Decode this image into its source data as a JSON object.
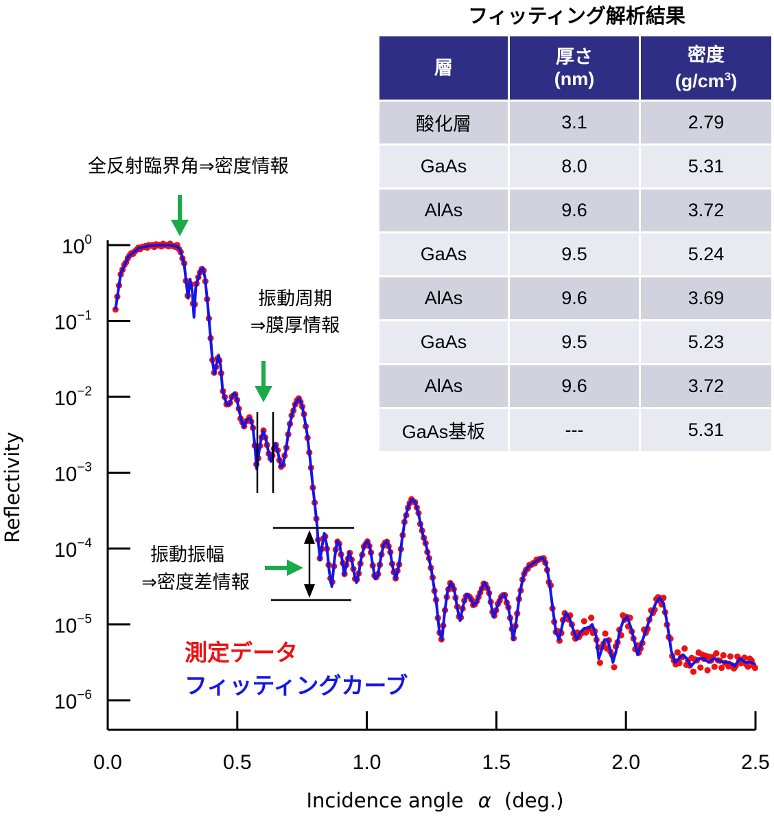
{
  "chart_data": {
    "type": "scatter",
    "xlabel": "Incidence angle",
    "xlabel_symbol": "α",
    "xlabel_unit": "(deg.)",
    "ylabel": "Reflectivity",
    "xlim": [
      0.0,
      2.5
    ],
    "ylim_log10": [
      -6.3,
      0.0
    ],
    "log_y": true,
    "x_ticks": [
      "0.0",
      "0.5",
      "1.0",
      "1.5",
      "2.0",
      "2.5"
    ],
    "x_tick_values": [
      0.0,
      0.5,
      1.0,
      1.5,
      2.0,
      2.5
    ],
    "y_ticks": [
      {
        "base": "10",
        "exp": "0",
        "value": 0
      },
      {
        "base": "10",
        "exp": "−1",
        "value": -1
      },
      {
        "base": "10",
        "exp": "−2",
        "value": -2
      },
      {
        "base": "10",
        "exp": "−3",
        "value": -3
      },
      {
        "base": "10",
        "exp": "−4",
        "value": -4
      },
      {
        "base": "10",
        "exp": "−5",
        "value": -5
      },
      {
        "base": "10",
        "exp": "−6",
        "value": -6
      }
    ],
    "series": [
      {
        "name": "測定データ",
        "color": "#ee1111",
        "style": "markers"
      },
      {
        "name": "フィッティングカーブ",
        "color": "#1515e6",
        "style": "line"
      }
    ],
    "curve_log10": [
      [
        0.03,
        -0.85
      ],
      [
        0.05,
        -0.38
      ],
      [
        0.08,
        -0.15
      ],
      [
        0.12,
        -0.04
      ],
      [
        0.16,
        -0.01
      ],
      [
        0.2,
        0.0
      ],
      [
        0.24,
        0.0
      ],
      [
        0.27,
        -0.02
      ],
      [
        0.28,
        -0.07
      ],
      [
        0.295,
        -0.25
      ],
      [
        0.305,
        -0.55
      ],
      [
        0.31,
        -0.7
      ],
      [
        0.318,
        -0.45
      ],
      [
        0.326,
        -0.6
      ],
      [
        0.333,
        -0.95
      ],
      [
        0.34,
        -0.55
      ],
      [
        0.348,
        -0.45
      ],
      [
        0.358,
        -0.33
      ],
      [
        0.367,
        -0.3
      ],
      [
        0.375,
        -0.42
      ],
      [
        0.385,
        -0.75
      ],
      [
        0.395,
        -1.15
      ],
      [
        0.405,
        -1.55
      ],
      [
        0.412,
        -1.7
      ],
      [
        0.418,
        -1.6
      ],
      [
        0.428,
        -1.45
      ],
      [
        0.436,
        -1.6
      ],
      [
        0.443,
        -1.9
      ],
      [
        0.45,
        -2.0
      ],
      [
        0.46,
        -2.1
      ],
      [
        0.47,
        -2.1
      ],
      [
        0.48,
        -2.0
      ],
      [
        0.488,
        -1.95
      ],
      [
        0.497,
        -2.0
      ],
      [
        0.505,
        -2.15
      ],
      [
        0.515,
        -2.3
      ],
      [
        0.525,
        -2.4
      ],
      [
        0.537,
        -2.3
      ],
      [
        0.55,
        -2.28
      ],
      [
        0.56,
        -2.4
      ],
      [
        0.568,
        -2.65
      ],
      [
        0.575,
        -2.95
      ],
      [
        0.583,
        -2.75
      ],
      [
        0.592,
        -2.55
      ],
      [
        0.6,
        -2.45
      ],
      [
        0.61,
        -2.55
      ],
      [
        0.62,
        -2.72
      ],
      [
        0.63,
        -2.85
      ],
      [
        0.638,
        -2.72
      ],
      [
        0.648,
        -2.62
      ],
      [
        0.658,
        -2.75
      ],
      [
        0.668,
        -2.92
      ],
      [
        0.676,
        -2.9
      ],
      [
        0.688,
        -2.7
      ],
      [
        0.698,
        -2.45
      ],
      [
        0.71,
        -2.25
      ],
      [
        0.723,
        -2.1
      ],
      [
        0.737,
        -2.02
      ],
      [
        0.748,
        -2.08
      ],
      [
        0.758,
        -2.25
      ],
      [
        0.77,
        -2.5
      ],
      [
        0.782,
        -2.85
      ],
      [
        0.792,
        -3.2
      ],
      [
        0.802,
        -3.5
      ],
      [
        0.808,
        -3.7
      ],
      [
        0.812,
        -3.9
      ],
      [
        0.82,
        -4.15
      ],
      [
        0.828,
        -3.95
      ],
      [
        0.836,
        -3.8
      ],
      [
        0.845,
        -3.95
      ],
      [
        0.855,
        -4.3
      ],
      [
        0.865,
        -4.5
      ],
      [
        0.875,
        -4.15
      ],
      [
        0.885,
        -3.9
      ],
      [
        0.895,
        -3.95
      ],
      [
        0.905,
        -4.15
      ],
      [
        0.913,
        -4.35
      ],
      [
        0.922,
        -4.2
      ],
      [
        0.932,
        -4.05
      ],
      [
        0.942,
        -4.15
      ],
      [
        0.952,
        -4.35
      ],
      [
        0.96,
        -4.45
      ],
      [
        0.97,
        -4.3
      ],
      [
        0.98,
        -4.1
      ],
      [
        0.992,
        -3.95
      ],
      [
        1.003,
        -3.9
      ],
      [
        1.013,
        -4.0
      ],
      [
        1.022,
        -4.2
      ],
      [
        1.032,
        -4.4
      ],
      [
        1.043,
        -4.35
      ],
      [
        1.055,
        -4.1
      ],
      [
        1.065,
        -3.95
      ],
      [
        1.077,
        -3.9
      ],
      [
        1.088,
        -4.0
      ],
      [
        1.1,
        -4.25
      ],
      [
        1.112,
        -4.4
      ],
      [
        1.125,
        -4.2
      ],
      [
        1.135,
        -3.9
      ],
      [
        1.148,
        -3.6
      ],
      [
        1.162,
        -3.42
      ],
      [
        1.175,
        -3.35
      ],
      [
        1.188,
        -3.4
      ],
      [
        1.2,
        -3.55
      ],
      [
        1.215,
        -3.8
      ],
      [
        1.232,
        -4.0
      ],
      [
        1.25,
        -4.3
      ],
      [
        1.268,
        -4.7
      ],
      [
        1.28,
        -5.1
      ],
      [
        1.29,
        -5.2
      ],
      [
        1.3,
        -4.85
      ],
      [
        1.312,
        -4.55
      ],
      [
        1.325,
        -4.45
      ],
      [
        1.338,
        -4.55
      ],
      [
        1.35,
        -4.8
      ],
      [
        1.36,
        -4.95
      ],
      [
        1.372,
        -4.75
      ],
      [
        1.385,
        -4.6
      ],
      [
        1.4,
        -4.65
      ],
      [
        1.412,
        -4.75
      ],
      [
        1.425,
        -4.7
      ],
      [
        1.44,
        -4.55
      ],
      [
        1.455,
        -4.45
      ],
      [
        1.47,
        -4.55
      ],
      [
        1.48,
        -4.75
      ],
      [
        1.49,
        -4.9
      ],
      [
        1.5,
        -4.8
      ],
      [
        1.515,
        -4.65
      ],
      [
        1.53,
        -4.6
      ],
      [
        1.545,
        -4.75
      ],
      [
        1.555,
        -4.95
      ],
      [
        1.565,
        -5.2
      ],
      [
        1.575,
        -5.0
      ],
      [
        1.59,
        -4.6
      ],
      [
        1.605,
        -4.35
      ],
      [
        1.62,
        -4.25
      ],
      [
        1.64,
        -4.2
      ],
      [
        1.66,
        -4.15
      ],
      [
        1.678,
        -4.12
      ],
      [
        1.692,
        -4.2
      ],
      [
        1.705,
        -4.45
      ],
      [
        1.718,
        -4.8
      ],
      [
        1.73,
        -5.1
      ],
      [
        1.742,
        -5.2
      ],
      [
        1.755,
        -5.0
      ],
      [
        1.768,
        -4.85
      ],
      [
        1.78,
        -4.9
      ],
      [
        1.795,
        -5.05
      ],
      [
        1.81,
        -5.2
      ],
      [
        1.825,
        -5.1
      ],
      [
        1.84,
        -5.05
      ],
      [
        1.855,
        -5.05
      ],
      [
        1.87,
        -5.0
      ],
      [
        1.885,
        -5.15
      ],
      [
        1.895,
        -5.45
      ],
      [
        1.905,
        -5.35
      ],
      [
        1.918,
        -5.2
      ],
      [
        1.93,
        -5.2
      ],
      [
        1.94,
        -5.35
      ],
      [
        1.95,
        -5.5
      ],
      [
        1.962,
        -5.35
      ],
      [
        1.975,
        -5.1
      ],
      [
        1.99,
        -4.95
      ],
      [
        2.005,
        -4.9
      ],
      [
        2.02,
        -5.05
      ],
      [
        2.035,
        -5.25
      ],
      [
        2.045,
        -5.4
      ],
      [
        2.055,
        -5.3
      ],
      [
        2.07,
        -5.15
      ],
      [
        2.085,
        -5.0
      ],
      [
        2.1,
        -4.85
      ],
      [
        2.115,
        -4.72
      ],
      [
        2.13,
        -4.65
      ],
      [
        2.145,
        -4.72
      ],
      [
        2.16,
        -5.0
      ],
      [
        2.175,
        -5.35
      ],
      [
        2.19,
        -5.5
      ],
      [
        2.205,
        -5.45
      ],
      [
        2.22,
        -5.4
      ],
      [
        2.235,
        -5.45
      ],
      [
        2.25,
        -5.55
      ],
      [
        2.265,
        -5.5
      ],
      [
        2.28,
        -5.45
      ],
      [
        2.3,
        -5.45
      ],
      [
        2.32,
        -5.5
      ],
      [
        2.34,
        -5.45
      ],
      [
        2.36,
        -5.48
      ],
      [
        2.38,
        -5.5
      ],
      [
        2.4,
        -5.5
      ],
      [
        2.42,
        -5.55
      ],
      [
        2.44,
        -5.45
      ],
      [
        2.46,
        -5.5
      ],
      [
        2.48,
        -5.5
      ],
      [
        2.5,
        -5.52
      ]
    ]
  },
  "annotations": {
    "critical_angle": "全反射臨界角⇒密度情報",
    "period_line1": "振動周期",
    "period_line2": "⇒膜厚情報",
    "amplitude_line1": "振動振幅",
    "amplitude_line2": "⇒密度差情報",
    "arrow_color": "#1aaa4a"
  },
  "legend": {
    "measured": "測定データ",
    "fitting": "フィッティングカーブ"
  },
  "table": {
    "title": "フィッティング解析結果",
    "header_color": "#2e2e85",
    "headers": [
      {
        "line1": "層",
        "line2": ""
      },
      {
        "line1": "厚さ",
        "line2": "(nm)"
      },
      {
        "line1": "密度",
        "line2": "(g/cm",
        "sup": "3",
        "tail": ")"
      }
    ],
    "rows": [
      [
        "酸化層",
        "3.1",
        "2.79"
      ],
      [
        "GaAs",
        "8.0",
        "5.31"
      ],
      [
        "AlAs",
        "9.6",
        "3.72"
      ],
      [
        "GaAs",
        "9.5",
        "5.24"
      ],
      [
        "AlAs",
        "9.6",
        "3.69"
      ],
      [
        "GaAs",
        "9.5",
        "5.23"
      ],
      [
        "AlAs",
        "9.6",
        "3.72"
      ],
      [
        "GaAs基板",
        "---",
        "5.31"
      ]
    ]
  }
}
